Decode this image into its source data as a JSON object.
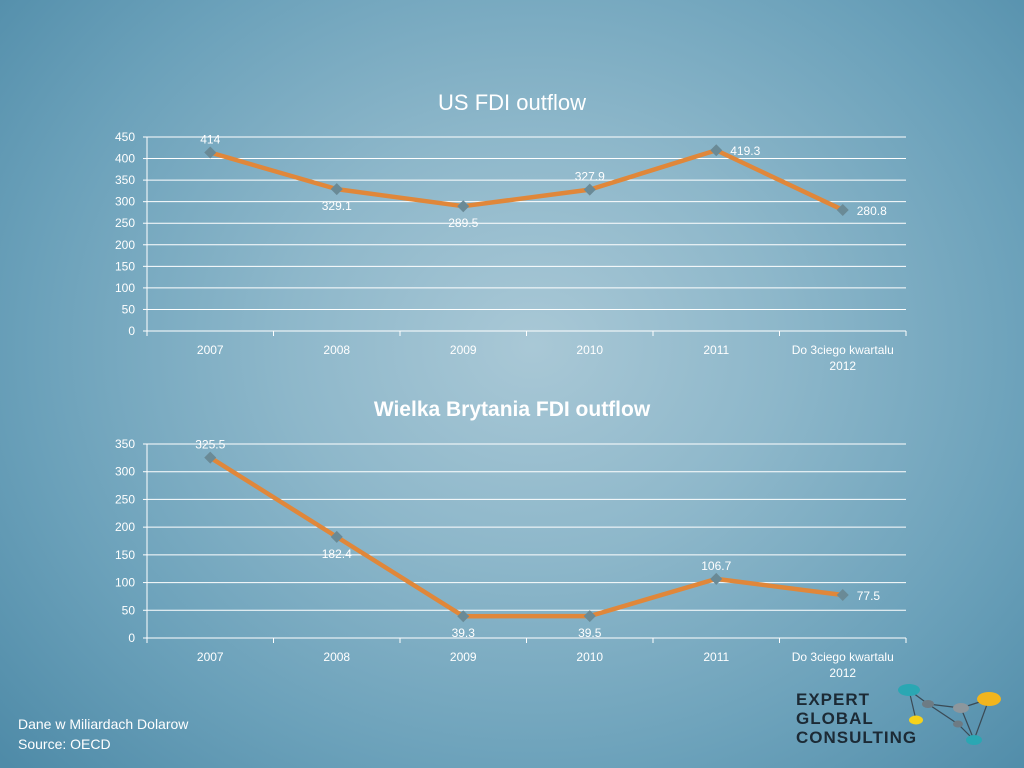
{
  "slide": {
    "footer_line1": "Dane w Miliardach Dolarow",
    "footer_line2": "Source:  OECD",
    "logo_line1": "EXPERT",
    "logo_line2": "GLOBAL",
    "logo_line3": "CONSULTING"
  },
  "colors": {
    "line": "#e0873a",
    "marker": "#6a8a96",
    "grid": "#ffffff",
    "text": "#ffffff"
  },
  "chart_data": [
    {
      "type": "line",
      "title": "US FDI outflow",
      "categories": [
        "2007",
        "2008",
        "2009",
        "2010",
        "2011",
        "Do 3ciego kwartalu 2012"
      ],
      "category_lines": [
        [
          "2007"
        ],
        [
          "2008"
        ],
        [
          "2009"
        ],
        [
          "2010"
        ],
        [
          "2011"
        ],
        [
          "Do 3ciego kwartalu",
          "2012"
        ]
      ],
      "values": [
        414,
        329.1,
        289.5,
        327.9,
        419.3,
        280.8
      ],
      "data_labels": [
        "414",
        "329.1",
        "289.5",
        "327.9",
        "419.3",
        "280.8"
      ],
      "label_positions": [
        "above",
        "below",
        "below",
        "above",
        "right",
        "right"
      ],
      "ylim": [
        0,
        450
      ],
      "yticks": [
        0,
        50,
        100,
        150,
        200,
        250,
        300,
        350,
        400,
        450
      ],
      "grid": true,
      "legend": "none"
    },
    {
      "type": "line",
      "title": "Wielka Brytania FDI  outflow",
      "categories": [
        "2007",
        "2008",
        "2009",
        "2010",
        "2011",
        "Do 3ciego kwartalu 2012"
      ],
      "category_lines": [
        [
          "2007"
        ],
        [
          "2008"
        ],
        [
          "2009"
        ],
        [
          "2010"
        ],
        [
          "2011"
        ],
        [
          "Do 3ciego kwartalu",
          "2012"
        ]
      ],
      "values": [
        325.5,
        182.4,
        39.3,
        39.5,
        106.7,
        77.5
      ],
      "data_labels": [
        "325.5",
        "182.4",
        "39.3",
        "39.5",
        "106.7",
        "77.5"
      ],
      "label_positions": [
        "above",
        "below",
        "below",
        "below",
        "above",
        "right"
      ],
      "ylim": [
        0,
        350
      ],
      "yticks": [
        0,
        50,
        100,
        150,
        200,
        250,
        300,
        350
      ],
      "grid": true,
      "legend": "none"
    }
  ]
}
